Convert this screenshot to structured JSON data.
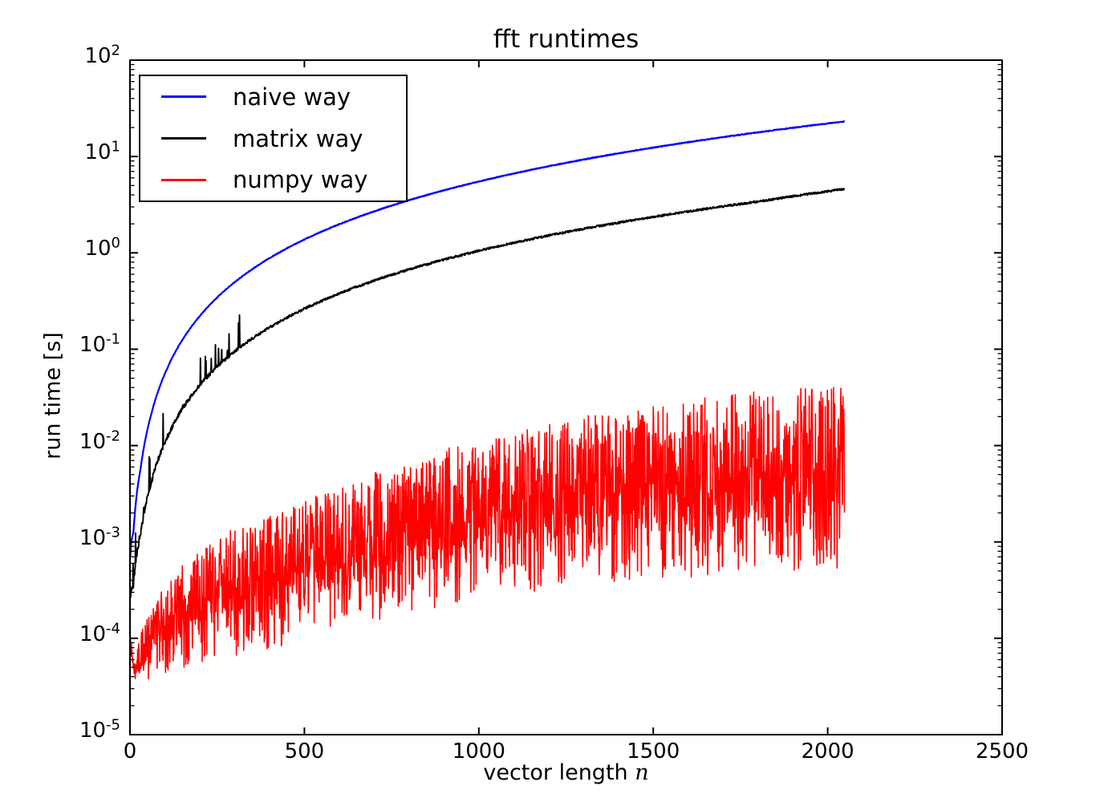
{
  "chart_data": {
    "type": "line",
    "title": "fft runtimes",
    "xlabel_text": "vector length",
    "xlabel_var": "n",
    "ylabel": "run time [s]",
    "xlim": [
      0,
      2500
    ],
    "ylim": [
      1e-05,
      100
    ],
    "y_scale": "log",
    "x_scale": "linear",
    "grid": false,
    "x_ticks": [
      0,
      500,
      1000,
      1500,
      2000,
      2500
    ],
    "y_tick_base": "10",
    "y_tick_exponents": [
      2,
      1,
      0,
      -1,
      -2,
      -3,
      -4,
      -5
    ],
    "legend_position": "upper left",
    "frame_color": "#000000",
    "background_color": "#ffffff",
    "random_seed": 9,
    "series": [
      {
        "name": "naive way",
        "color": "#0000ff",
        "line_width": 2.2,
        "n_range": [
          1,
          2048
        ],
        "anchors_n": [
          1,
          10,
          30,
          60,
          100,
          150,
          200,
          300,
          400,
          500,
          650,
          800,
          1000,
          1200,
          1400,
          1600,
          1800,
          2048
        ],
        "anchors_t": [
          0.000706,
          0.00125,
          0.00565,
          0.0205,
          0.0557,
          0.1245,
          0.2207,
          0.4957,
          0.8807,
          1.3757,
          2.3244,
          3.5207,
          5.5007,
          7.9207,
          10.781,
          14.081,
          17.821,
          23.069
        ],
        "noise": {
          "jitter_log": 0.004,
          "low_n_extra_jitter": 0.0,
          "low_n_decay": 200,
          "spike_prob": 0.0,
          "spike_log_max": 0.0,
          "spike_n_max": 0
        }
      },
      {
        "name": "matrix way",
        "color": "#000000",
        "line_width": 1.9,
        "n_range": [
          1,
          2048
        ],
        "anchors_n": [
          1,
          10,
          30,
          60,
          100,
          150,
          200,
          300,
          400,
          500,
          650,
          800,
          1000,
          1200,
          1400,
          1600,
          1800,
          2048
        ],
        "anchors_t": [
          0.000251,
          0.000355,
          0.001195,
          0.00403,
          0.01075,
          0.02388,
          0.04225,
          0.09475,
          0.16825,
          0.26275,
          0.44388,
          0.67225,
          1.05025,
          1.51225,
          2.05825,
          2.68825,
          3.40225,
          4.6
        ],
        "noise": {
          "jitter_log": 0.011,
          "low_n_extra_jitter": 0.03,
          "low_n_decay": 160,
          "spike_prob": 0.05,
          "spike_log_max": 0.35,
          "spike_n_max": 320
        }
      },
      {
        "name": "numpy way",
        "color": "#ff0000",
        "line_width": 1.6,
        "n_range": [
          1,
          2048
        ],
        "envelope_n": [
          1,
          20,
          50,
          100,
          200,
          300,
          450,
          600,
          800,
          1000,
          1300,
          1600,
          1900,
          2048
        ],
        "envelope_lo": [
          9e-05,
          3.2e-05,
          3.6e-05,
          4.2e-05,
          5.5e-05,
          6.5e-05,
          8.5e-05,
          0.00012,
          0.00018,
          0.00025,
          0.00035,
          0.00043,
          0.0005,
          0.00052
        ],
        "envelope_hi": [
          0.00011,
          7e-05,
          0.00018,
          0.00035,
          0.0008,
          0.0014,
          0.0022,
          0.004,
          0.007,
          0.012,
          0.02,
          0.03,
          0.04,
          0.045
        ],
        "distribution": {
          "mass_prob": 0.55,
          "mass_range": [
            0.3,
            0.7
          ],
          "up_prob": 0.28,
          "up_range": [
            0.72,
            1.0
          ],
          "down_range": [
            0.0,
            0.32
          ]
        }
      }
    ]
  }
}
